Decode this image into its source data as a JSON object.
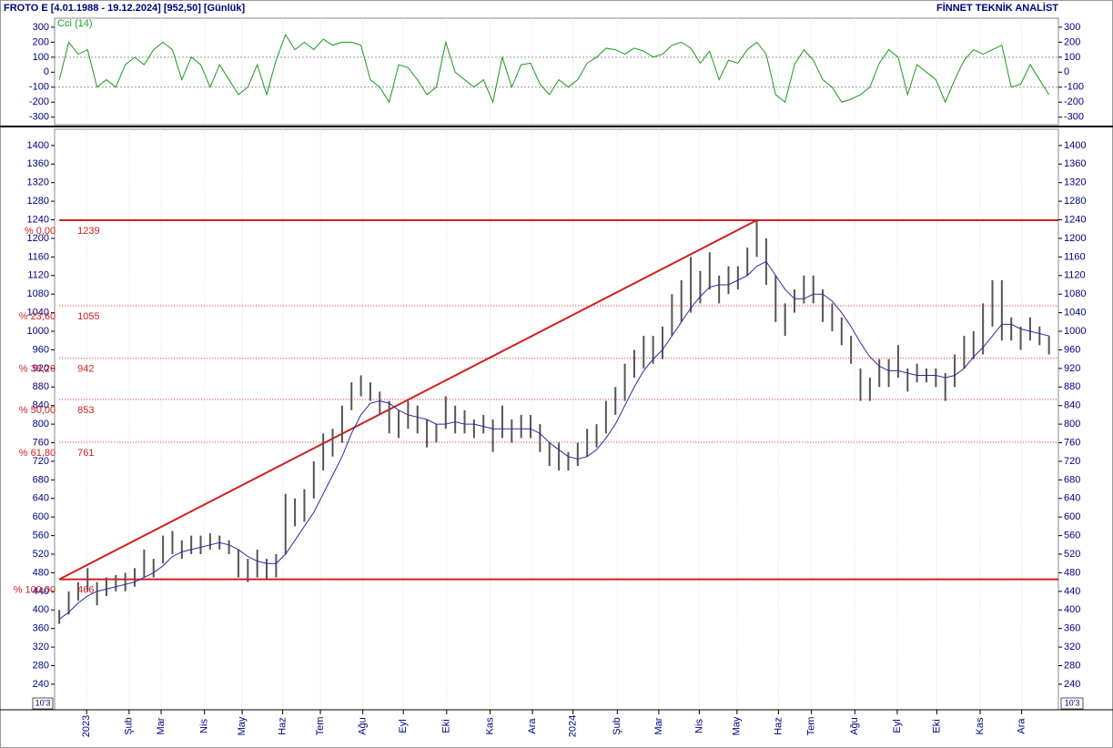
{
  "header": {
    "left": "FROTO E  [4.01.1988 - 19.12.2024]  [952,50]  [Günlük]",
    "right": "FİNNET TEKNİK ANALİST",
    "scale_note": "10'3"
  },
  "chart_data": [
    {
      "type": "line",
      "title": "Cci (14)",
      "color": "#1a9a1a",
      "ylim": [
        -350,
        360
      ],
      "yticks": [
        -300,
        -200,
        -100,
        0,
        100,
        200,
        300
      ],
      "reference_lines": [
        100,
        -100
      ],
      "values": [
        -50,
        200,
        120,
        150,
        -100,
        -50,
        -100,
        50,
        100,
        50,
        150,
        200,
        150,
        -50,
        100,
        50,
        -100,
        50,
        -50,
        -150,
        -100,
        50,
        -150,
        80,
        250,
        150,
        200,
        150,
        220,
        180,
        200,
        200,
        180,
        -50,
        -100,
        -200,
        50,
        30,
        -50,
        -150,
        -100,
        200,
        0,
        -50,
        -100,
        -50,
        -200,
        100,
        -100,
        50,
        60,
        -80,
        -150,
        -50,
        -100,
        -50,
        60,
        100,
        160,
        150,
        120,
        160,
        140,
        100,
        120,
        180,
        200,
        160,
        60,
        140,
        -50,
        80,
        60,
        150,
        200,
        120,
        -150,
        -200,
        50,
        150,
        80,
        -50,
        -100,
        -200,
        -180,
        -150,
        -100,
        60,
        150,
        100,
        -150,
        50,
        0,
        -50,
        -200,
        -50,
        80,
        150,
        120,
        150,
        180,
        -100,
        -80,
        50,
        -50,
        -150
      ]
    },
    {
      "type": "ohlc",
      "color": "#555555",
      "ylim": [
        185,
        1435
      ],
      "yticks": [
        240,
        280,
        320,
        360,
        400,
        440,
        480,
        520,
        560,
        600,
        640,
        680,
        720,
        760,
        800,
        840,
        880,
        920,
        960,
        1000,
        1040,
        1080,
        1120,
        1160,
        1200,
        1240,
        1280,
        1320,
        1360,
        1400
      ],
      "xlim": [
        -0.5,
        106
      ],
      "grid": "x",
      "xticks": [
        {
          "value": 2.9,
          "label": "2023"
        },
        {
          "value": 7.4,
          "label": "Şub"
        },
        {
          "value": 10.8,
          "label": "Mar"
        },
        {
          "value": 15.4,
          "label": "Nis"
        },
        {
          "value": 19.4,
          "label": "May"
        },
        {
          "value": 23.7,
          "label": "Haz"
        },
        {
          "value": 27.7,
          "label": "Tem"
        },
        {
          "value": 32.2,
          "label": "Ağu"
        },
        {
          "value": 36.5,
          "label": "Eyl"
        },
        {
          "value": 41.1,
          "label": "Eki"
        },
        {
          "value": 45.7,
          "label": "Kas"
        },
        {
          "value": 50.2,
          "label": "Ara"
        },
        {
          "value": 54.5,
          "label": "2024"
        },
        {
          "value": 59.2,
          "label": "Şub"
        },
        {
          "value": 63.6,
          "label": "Mar"
        },
        {
          "value": 67.9,
          "label": "Nis"
        },
        {
          "value": 71.9,
          "label": "May"
        },
        {
          "value": 76.3,
          "label": "Haz"
        },
        {
          "value": 79.8,
          "label": "Tem"
        },
        {
          "value": 84.4,
          "label": "Ağu"
        },
        {
          "value": 88.9,
          "label": "Eyl"
        },
        {
          "value": 93.1,
          "label": "Eki"
        },
        {
          "value": 97.7,
          "label": "Kas"
        },
        {
          "value": 102.1,
          "label": "Ara"
        }
      ],
      "x": [
        0,
        1,
        2,
        3,
        4,
        5,
        6,
        7,
        8,
        9,
        10,
        11,
        12,
        13,
        14,
        15,
        16,
        17,
        18,
        19,
        20,
        21,
        22,
        23,
        24,
        25,
        26,
        27,
        28,
        29,
        30,
        31,
        32,
        33,
        34,
        35,
        36,
        37,
        38,
        39,
        40,
        41,
        42,
        43,
        44,
        45,
        46,
        47,
        48,
        49,
        50,
        51,
        52,
        53,
        54,
        55,
        56,
        57,
        58,
        59,
        60,
        61,
        62,
        63,
        64,
        65,
        66,
        67,
        68,
        69,
        70,
        71,
        72,
        73,
        74,
        75,
        76,
        77,
        78,
        79,
        80,
        81,
        82,
        83,
        84,
        85,
        86,
        87,
        88,
        89,
        90,
        91,
        92,
        93,
        94,
        95,
        96,
        97,
        98,
        99,
        100,
        101,
        102,
        103,
        104,
        105
      ],
      "high": [
        400,
        440,
        460,
        490,
        460,
        470,
        475,
        480,
        490,
        530,
        510,
        560,
        570,
        550,
        560,
        560,
        565,
        560,
        550,
        530,
        510,
        530,
        510,
        520,
        650,
        640,
        660,
        720,
        780,
        790,
        840,
        890,
        905,
        890,
        870,
        850,
        830,
        850,
        840,
        810,
        800,
        860,
        840,
        830,
        810,
        820,
        810,
        840,
        810,
        820,
        820,
        800,
        760,
        760,
        740,
        760,
        790,
        800,
        850,
        880,
        930,
        960,
        990,
        990,
        1010,
        1080,
        1110,
        1160,
        1130,
        1170,
        1120,
        1140,
        1140,
        1180,
        1239,
        1200,
        1120,
        1060,
        1090,
        1120,
        1120,
        1090,
        1060,
        1030,
        990,
        920,
        900,
        940,
        940,
        970,
        920,
        930,
        920,
        920,
        910,
        950,
        990,
        1000,
        1060,
        1110,
        1110,
        1030,
        1010,
        1030,
        1010,
        990
      ],
      "low": [
        370,
        390,
        420,
        440,
        410,
        430,
        440,
        440,
        450,
        470,
        470,
        500,
        520,
        510,
        520,
        520,
        530,
        530,
        520,
        470,
        460,
        470,
        466,
        470,
        520,
        580,
        590,
        640,
        700,
        730,
        760,
        830,
        860,
        850,
        820,
        780,
        770,
        790,
        780,
        750,
        760,
        790,
        780,
        780,
        770,
        780,
        740,
        770,
        760,
        770,
        770,
        740,
        710,
        700,
        700,
        710,
        730,
        750,
        780,
        820,
        850,
        900,
        920,
        930,
        940,
        990,
        1020,
        1040,
        1060,
        1090,
        1060,
        1080,
        1090,
        1120,
        1160,
        1100,
        1020,
        990,
        1040,
        1060,
        1060,
        1020,
        1000,
        970,
        930,
        850,
        850,
        880,
        880,
        900,
        870,
        890,
        890,
        880,
        850,
        880,
        920,
        940,
        950,
        1010,
        980,
        980,
        960,
        980,
        970,
        950
      ],
      "ma": {
        "color": "#2a2aa0",
        "values": [
          380,
          395,
          415,
          430,
          440,
          445,
          450,
          455,
          460,
          470,
          480,
          495,
          515,
          525,
          530,
          535,
          540,
          545,
          540,
          530,
          515,
          505,
          500,
          500,
          520,
          550,
          580,
          610,
          650,
          690,
          730,
          780,
          820,
          845,
          850,
          845,
          830,
          820,
          815,
          810,
          800,
          800,
          805,
          800,
          800,
          795,
          790,
          790,
          790,
          790,
          790,
          780,
          760,
          745,
          730,
          725,
          730,
          745,
          770,
          800,
          840,
          880,
          915,
          940,
          960,
          990,
          1020,
          1050,
          1075,
          1095,
          1100,
          1100,
          1110,
          1120,
          1140,
          1150,
          1120,
          1090,
          1070,
          1070,
          1080,
          1080,
          1065,
          1040,
          1010,
          975,
          945,
          925,
          915,
          915,
          910,
          905,
          905,
          905,
          900,
          905,
          920,
          945,
          965,
          990,
          1015,
          1015,
          1005,
          1000,
          995,
          990
        ]
      },
      "fib": {
        "color": "#d02020",
        "levels": [
          {
            "label": "% 0,00",
            "value": 1239
          },
          {
            "label": "% 23,60",
            "value": 1055
          },
          {
            "label": "% 38,20",
            "value": 942
          },
          {
            "label": "% 50,00",
            "value": 853
          },
          {
            "label": "% 61,80",
            "value": 761
          },
          {
            "label": "% 100,00",
            "value": 466
          }
        ]
      }
    }
  ]
}
